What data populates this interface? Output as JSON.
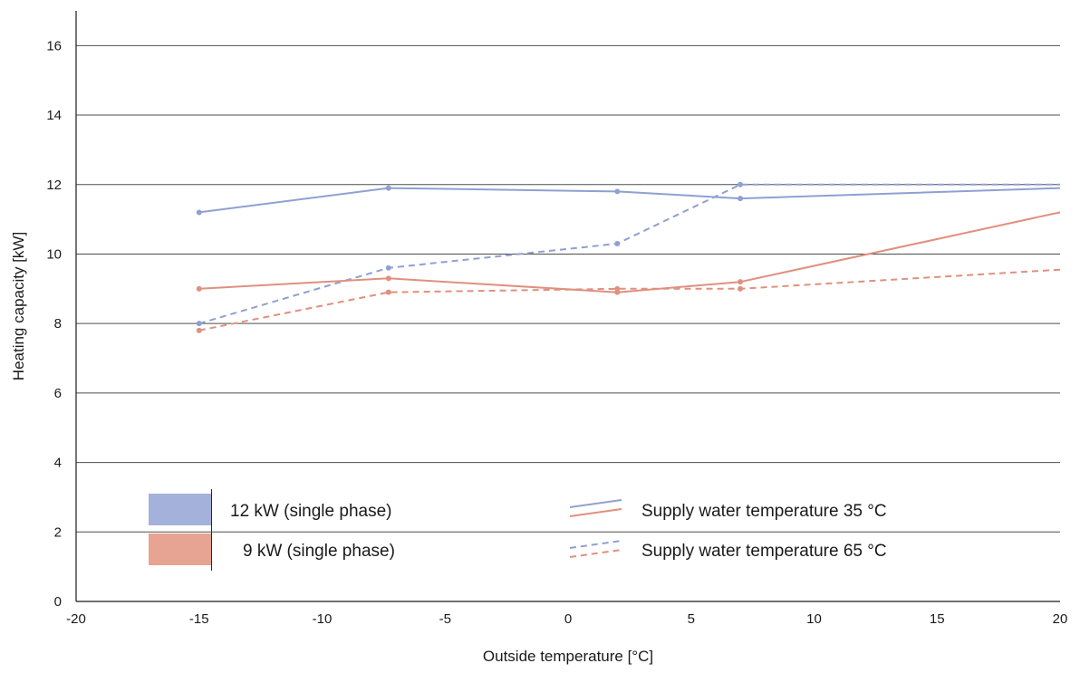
{
  "chart_data": {
    "type": "line",
    "xlabel": "Outside temperature [°C]",
    "ylabel": "Heating capacity [kW]",
    "xlim": [
      -20,
      20
    ],
    "ylim": [
      0,
      17
    ],
    "x_ticks": [
      -20,
      -15,
      -10,
      -5,
      0,
      5,
      10,
      15,
      20
    ],
    "y_ticks": [
      0,
      2,
      4,
      6,
      8,
      10,
      12,
      14,
      16
    ],
    "grid": "horizontal",
    "series": [
      {
        "name": "12 kW (single phase), supply water temperature 35 °C",
        "color": "#8fa0d2",
        "dash": false,
        "x": [
          -15,
          -7.3,
          2,
          7,
          20
        ],
        "y": [
          11.2,
          11.9,
          11.8,
          11.6,
          11.9
        ]
      },
      {
        "name": "12 kW (single phase), supply water temperature 65 °C",
        "color": "#8fa0d2",
        "dash": true,
        "x": [
          -15,
          -7.3,
          2,
          7,
          20
        ],
        "y": [
          8.0,
          9.6,
          10.3,
          12.0,
          12.0
        ]
      },
      {
        "name": "9 kW (single phase), supply water temperature 35 °C",
        "color": "#e0907e",
        "dash": false,
        "x": [
          -15,
          -7.3,
          2,
          7,
          20
        ],
        "y": [
          9.0,
          9.3,
          8.9,
          9.2,
          11.2
        ]
      },
      {
        "name": "9 kW (single phase), supply water temperature 65 °C",
        "color": "#e0907e",
        "dash": true,
        "x": [
          -15,
          -7.3,
          2,
          7,
          20
        ],
        "y": [
          7.8,
          8.9,
          9.0,
          9.0,
          9.55
        ]
      }
    ],
    "legend": {
      "placement": "bottom-left",
      "models": [
        {
          "label": "12 kW (single phase)",
          "color": "#a3b1db"
        },
        {
          "label": "9 kW (single phase)",
          "color": "#e7a492"
        }
      ],
      "line_styles": [
        {
          "label": "Supply water temperature 35 °C",
          "dash": false
        },
        {
          "label": "Supply water temperature 65 °C",
          "dash": true
        }
      ]
    }
  }
}
